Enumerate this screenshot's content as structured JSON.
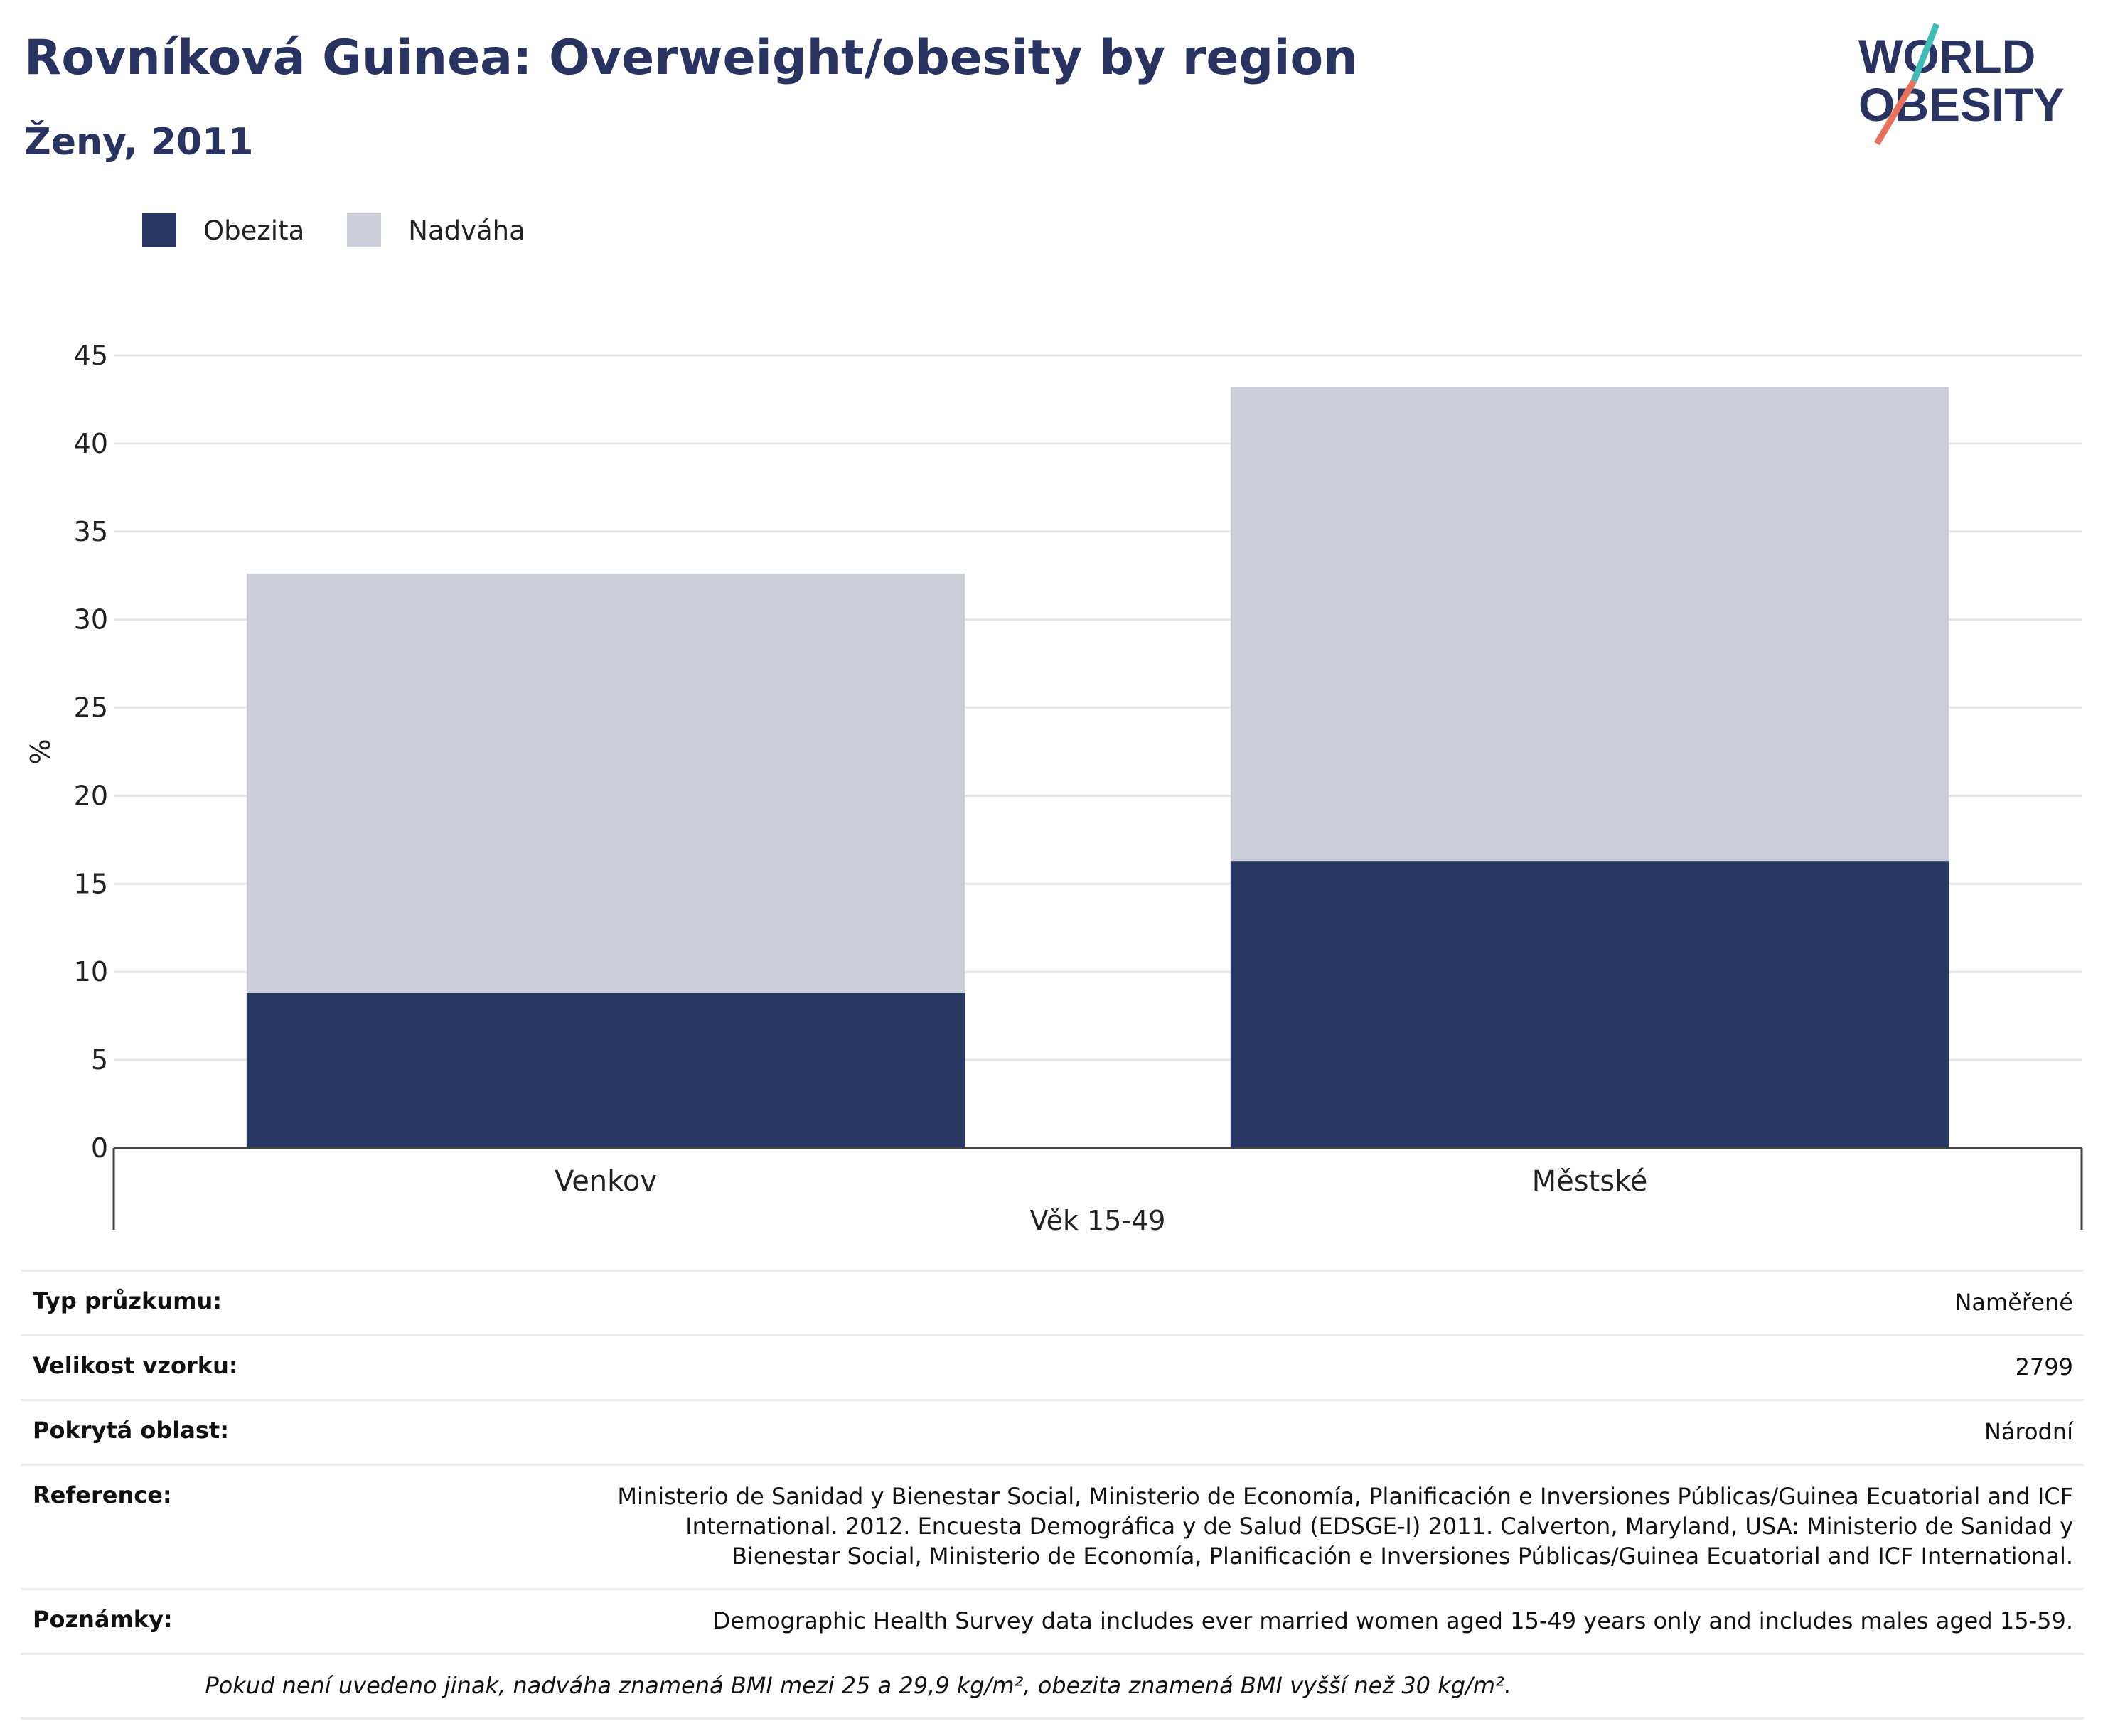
{
  "header": {
    "title": "Rovníková Guinea: Overweight/obesity by region",
    "subtitle": "Ženy, 2011"
  },
  "logo": {
    "line1": "WORLD",
    "line2": "OBESITY"
  },
  "legend": [
    {
      "label": "Obezita",
      "color": "#283662"
    },
    {
      "label": "Nadváha",
      "color": "#cbcdd9"
    }
  ],
  "chart_data": {
    "type": "bar",
    "stacked": true,
    "categories": [
      "Venkov",
      "Městské"
    ],
    "series": [
      {
        "name": "Obezita",
        "values": [
          8.8,
          16.3
        ],
        "color": "#283662"
      },
      {
        "name": "Nadváha",
        "values": [
          23.8,
          26.9
        ],
        "color": "#cbcdd9"
      }
    ],
    "xlabel": "Věk 15-49",
    "ylabel": "%",
    "ylim": [
      0,
      45
    ],
    "yticks": [
      0,
      5,
      10,
      15,
      20,
      25,
      30,
      35,
      40,
      45
    ],
    "grid": true,
    "legend_position": "top-left"
  },
  "meta": [
    {
      "key": "Typ průzkumu:",
      "value": "Naměřené"
    },
    {
      "key": "Velikost vzorku:",
      "value": "2799"
    },
    {
      "key": "Pokrytá oblast:",
      "value": "Národní"
    },
    {
      "key": "Reference:",
      "value": "Ministerio de Sanidad y Bienestar Social, Ministerio de Economía, Planificación e Inversiones Públicas/Guinea Ecuatorial and ICF International. 2012. Encuesta Demográfica y de Salud (EDSGE-I) 2011. Calverton, Maryland, USA: Ministerio de Sanidad y Bienestar Social, Ministerio de Economía, Planificación e Inversiones Públicas/Guinea Ecuatorial and ICF International."
    },
    {
      "key": "Poznámky:",
      "value": "Demographic Health Survey data includes ever married women aged 15-49 years only and includes males aged 15-59."
    }
  ],
  "footnote": "Pokud není uvedeno jinak, nadváha znamená BMI mezi 25 a 29,9 kg/m², obezita znamená BMI vyšší než 30 kg/m²."
}
